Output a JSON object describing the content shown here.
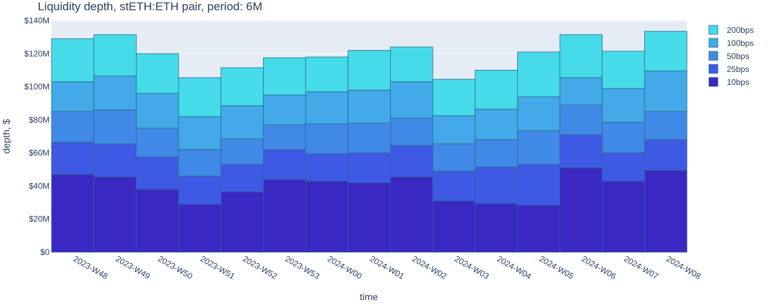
{
  "chart_data": {
    "type": "bar",
    "stacked": true,
    "title": "Liquidity depth, stETH:ETH pair, period: 6M",
    "xlabel": "time",
    "ylabel": "depth, $",
    "ylim": [
      0,
      140000000
    ],
    "yticks": [
      0,
      20000000,
      40000000,
      60000000,
      80000000,
      100000000,
      120000000,
      140000000
    ],
    "ytick_labels": [
      "$0",
      "$20M",
      "$40M",
      "$60M",
      "$80M",
      "$100M",
      "$120M",
      "$140M"
    ],
    "categories": [
      "2023-W48",
      "2023-W49",
      "2023-W50",
      "2023-W51",
      "2023-W52",
      "2023-W53",
      "2024-W00",
      "2024-W01",
      "2024-W02",
      "2024-W03",
      "2024-W04",
      "2024-W05",
      "2024-W06",
      "2024-W07",
      "2024-W08"
    ],
    "grid": true,
    "legend_position": "right",
    "series": [
      {
        "name": "10bps",
        "color": "#3b28c2",
        "values": [
          47,
          45.5,
          38,
          29,
          36.5,
          44,
          43,
          42,
          45.5,
          31,
          29.5,
          28.5,
          51,
          43,
          49.5
        ]
      },
      {
        "name": "25bps",
        "color": "#3e5ae4",
        "values": [
          19.5,
          20,
          19.5,
          17,
          16.5,
          18,
          16.5,
          18,
          19,
          18,
          22,
          24.5,
          20,
          17,
          18.5
        ]
      },
      {
        "name": "50bps",
        "color": "#4189e6",
        "values": [
          18.5,
          20.5,
          17.5,
          16,
          15.5,
          15,
          18,
          18,
          16.5,
          16.5,
          16.5,
          20.5,
          18,
          18.5,
          17
        ]
      },
      {
        "name": "100bps",
        "color": "#43a9e8",
        "values": [
          18,
          20.5,
          21,
          20,
          20,
          18,
          19.5,
          20,
          22,
          17,
          18.5,
          20.5,
          16.5,
          20.5,
          24.5
        ]
      },
      {
        "name": "200bps",
        "color": "#46dbe9",
        "values": [
          26,
          25,
          24,
          23.5,
          23,
          22.5,
          21,
          24,
          21,
          22,
          23.5,
          27,
          26,
          22.5,
          24
        ]
      }
    ],
    "units_note": "$M"
  },
  "colors": {
    "plot_bg": "#e5ecf6",
    "grid": "#ffffff",
    "bar_stroke": "#2a6a8a"
  }
}
